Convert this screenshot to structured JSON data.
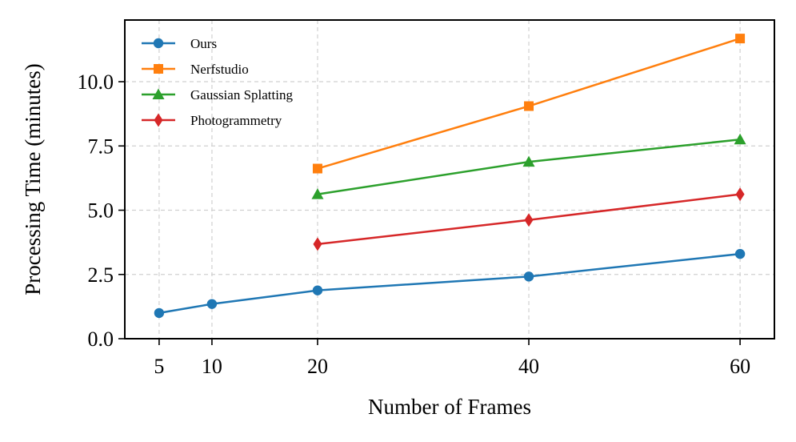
{
  "chart_data": {
    "type": "line",
    "title": "",
    "xlabel": "Number of Frames",
    "ylabel": "Processing Time (minutes)",
    "xlim": [
      1.75,
      63.25
    ],
    "ylim": [
      0,
      12.4
    ],
    "xticks": [
      5,
      10,
      20,
      40,
      60
    ],
    "xtick_labels": [
      "5",
      "10",
      "20",
      "40",
      "60"
    ],
    "yticks": [
      0,
      2.5,
      5,
      7.5,
      10
    ],
    "ytick_labels": [
      "0.0",
      "2.5",
      "5.0",
      "7.5",
      "10.0"
    ],
    "grid": true,
    "legend_position": "top-left",
    "series": [
      {
        "name": "Ours",
        "color": "#1f77b4",
        "marker": "circle",
        "x": [
          5,
          10,
          20,
          40,
          60
        ],
        "y": [
          1.0,
          1.35,
          1.88,
          2.42,
          3.3
        ]
      },
      {
        "name": "Nerfstudio",
        "color": "#ff7f0e",
        "marker": "square",
        "x": [
          20,
          40,
          60
        ],
        "y": [
          6.62,
          9.05,
          11.68
        ]
      },
      {
        "name": "Gaussian Splatting",
        "color": "#2ca02c",
        "marker": "triangle",
        "x": [
          20,
          40,
          60
        ],
        "y": [
          5.62,
          6.88,
          7.75
        ]
      },
      {
        "name": "Photogrammetry",
        "color": "#d62728",
        "marker": "diamond",
        "x": [
          20,
          40,
          60
        ],
        "y": [
          3.68,
          4.62,
          5.62
        ]
      }
    ]
  }
}
